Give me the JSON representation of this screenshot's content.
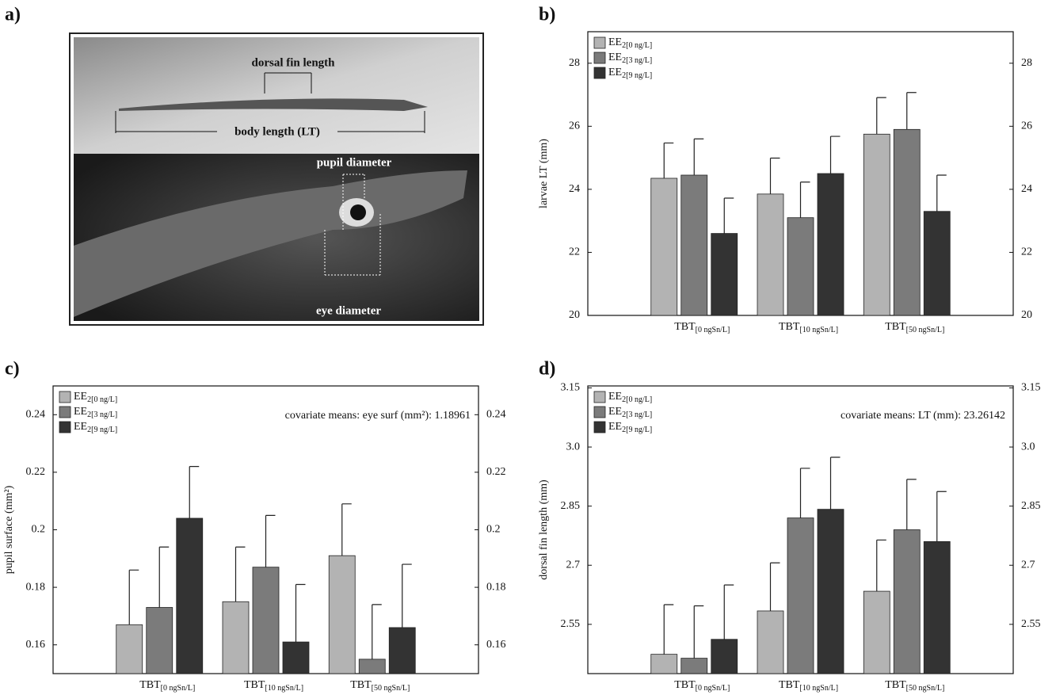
{
  "panel_a": {
    "label": "a)",
    "annotations": [
      "dorsal fin length",
      "body length (LT)",
      "pupil diameter",
      "eye diameter"
    ]
  },
  "chart_data": [
    {
      "type": "bar",
      "panel_label": "b)",
      "ylabel": "larvae LT (mm)",
      "legend": "top-left",
      "categories": [
        "TBT[0 ngSn/L]",
        "TBT[10 ngSn/L]",
        "TBT[50 ngSn/L]"
      ],
      "series": [
        {
          "name": "EE2[0 ng/L]",
          "color": "#b3b3b3",
          "values": [
            24.35,
            23.85,
            25.75
          ],
          "errors": [
            1.12,
            1.14,
            1.16
          ]
        },
        {
          "name": "EE2[3 ng/L]",
          "color": "#7b7b7b",
          "values": [
            24.45,
            23.1,
            25.9
          ],
          "errors": [
            1.15,
            1.13,
            1.17
          ]
        },
        {
          "name": "EE2[9 ng/L]",
          "color": "#333333",
          "values": [
            22.6,
            24.5,
            23.3
          ],
          "errors": [
            1.12,
            1.18,
            1.15
          ]
        }
      ],
      "ylim": [
        20,
        29
      ],
      "yticks": [
        20,
        22,
        24,
        26,
        28
      ]
    },
    {
      "type": "bar",
      "panel_label": "c)",
      "ylabel": "pupil surface (mm²)",
      "legend": "top-left",
      "annotation": "covariate means: eye surf (mm²): 1.18961",
      "categories": [
        "TBT[0 ngSn/L]",
        "TBT[10 ngSn/L]",
        "TBT[50 ngSn/L]"
      ],
      "series": [
        {
          "name": "EE2[0 ng/L]",
          "color": "#b3b3b3",
          "values": [
            0.167,
            0.175,
            0.191
          ],
          "errors": [
            0.019,
            0.019,
            0.018
          ]
        },
        {
          "name": "EE2[3 ng/L]",
          "color": "#7b7b7b",
          "values": [
            0.173,
            0.187,
            0.155
          ],
          "errors": [
            0.021,
            0.018,
            0.019
          ]
        },
        {
          "name": "EE2[9 ng/L]",
          "color": "#333333",
          "values": [
            0.204,
            0.161,
            0.166
          ],
          "errors": [
            0.018,
            0.02,
            0.022
          ]
        }
      ],
      "ylim": [
        0.15,
        0.25
      ],
      "yticks": [
        0.16,
        0.18,
        0.2,
        0.22,
        0.24
      ]
    },
    {
      "type": "bar",
      "panel_label": "d)",
      "ylabel": "dorsal fin length (mm)",
      "legend": "top-left",
      "annotation": "covariate means: LT (mm): 23.26142",
      "categories": [
        "TBT[0 ngSn/L]",
        "TBT[10 ngSn/L]",
        "TBT[50 ngSn/L]"
      ],
      "series": [
        {
          "name": "EE2[0 ng/L]",
          "color": "#b3b3b3",
          "values": [
            2.474,
            2.584,
            2.634
          ],
          "errors": [
            0.126,
            0.122,
            0.13
          ]
        },
        {
          "name": "EE2[3 ng/L]",
          "color": "#7b7b7b",
          "values": [
            2.464,
            2.82,
            2.79
          ],
          "errors": [
            0.133,
            0.126,
            0.128
          ]
        },
        {
          "name": "EE2[9 ng/L]",
          "color": "#333333",
          "values": [
            2.512,
            2.842,
            2.76
          ],
          "errors": [
            0.138,
            0.132,
            0.127
          ]
        }
      ],
      "ylim": [
        2.425,
        3.155
      ],
      "yticks": [
        2.55,
        {
          "value": 2.7,
          "label": "2.7"
        },
        2.85,
        {
          "value": 3,
          "label": "3.0"
        },
        3.15
      ]
    }
  ]
}
